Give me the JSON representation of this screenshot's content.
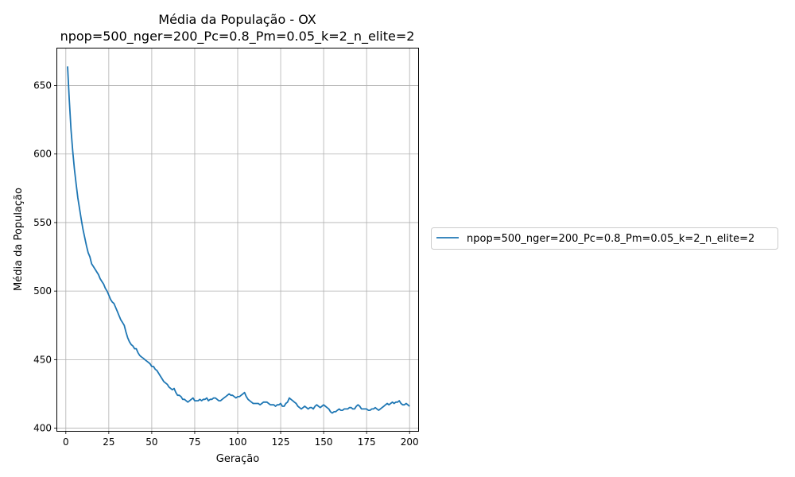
{
  "chart_data": {
    "type": "line",
    "title": "Média da População - OX",
    "subtitle": "npop=500_nger=200_Pc=0.8_Pm=0.05_k=2_n_elite=2",
    "xlabel": "Geração",
    "ylabel": "Média da População",
    "xlim": [
      -5,
      205
    ],
    "ylim": [
      398,
      677
    ],
    "xticks": [
      0,
      25,
      50,
      75,
      100,
      125,
      150,
      175,
      200
    ],
    "yticks": [
      400,
      450,
      500,
      550,
      600,
      650
    ],
    "grid": true,
    "legend_position": "right-outside",
    "series": [
      {
        "name": "npop=500_nger=200_Pc=0.8_Pm=0.05_k=2_n_elite=2",
        "color": "#1f77b4",
        "x": [
          1,
          2,
          3,
          4,
          5,
          6,
          7,
          8,
          9,
          10,
          11,
          12,
          13,
          14,
          15,
          16,
          17,
          18,
          19,
          20,
          21,
          22,
          23,
          24,
          25,
          26,
          27,
          28,
          29,
          30,
          31,
          32,
          33,
          34,
          35,
          36,
          37,
          38,
          39,
          40,
          41,
          42,
          43,
          44,
          45,
          46,
          47,
          48,
          49,
          50,
          51,
          52,
          53,
          54,
          55,
          56,
          57,
          58,
          59,
          60,
          61,
          62,
          63,
          64,
          65,
          66,
          67,
          68,
          69,
          70,
          71,
          72,
          73,
          74,
          75,
          76,
          77,
          78,
          79,
          80,
          81,
          82,
          83,
          84,
          85,
          86,
          87,
          88,
          89,
          90,
          91,
          92,
          93,
          94,
          95,
          96,
          97,
          98,
          99,
          100,
          101,
          102,
          103,
          104,
          105,
          106,
          107,
          108,
          109,
          110,
          111,
          112,
          113,
          114,
          115,
          116,
          117,
          118,
          119,
          120,
          121,
          122,
          123,
          124,
          125,
          126,
          127,
          128,
          129,
          130,
          131,
          132,
          133,
          134,
          135,
          136,
          137,
          138,
          139,
          140,
          141,
          142,
          143,
          144,
          145,
          146,
          147,
          148,
          149,
          150,
          151,
          152,
          153,
          154,
          155,
          156,
          157,
          158,
          159,
          160,
          161,
          162,
          163,
          164,
          165,
          166,
          167,
          168,
          169,
          170,
          171,
          172,
          173,
          174,
          175,
          176,
          177,
          178,
          179,
          180,
          181,
          182,
          183,
          184,
          185,
          186,
          187,
          188,
          189,
          190,
          191,
          192,
          193,
          194,
          195,
          196,
          197,
          198,
          199,
          200
        ],
        "y": [
          664,
          640,
          618,
          602,
          589,
          578,
          568,
          560,
          552,
          545,
          539,
          533,
          528,
          525,
          520,
          518,
          516,
          514,
          512,
          509,
          507,
          505,
          502,
          500,
          497,
          494,
          492,
          491,
          488,
          485,
          482,
          479,
          477,
          475,
          470,
          466,
          463,
          461,
          460,
          458,
          458,
          455,
          453,
          452,
          451,
          450,
          449,
          448,
          447,
          445,
          445,
          443,
          442,
          440,
          438,
          436,
          434,
          433,
          432,
          430,
          429,
          428,
          429,
          426,
          424,
          424,
          423,
          421,
          421,
          420,
          419,
          420,
          421,
          422,
          420,
          420,
          420,
          421,
          420,
          421,
          421,
          422,
          420,
          421,
          421,
          422,
          422,
          421,
          420,
          420,
          421,
          422,
          423,
          424,
          425,
          424,
          424,
          423,
          422,
          423,
          423,
          424,
          425,
          426,
          423,
          421,
          420,
          419,
          418,
          418,
          418,
          418,
          417,
          418,
          419,
          419,
          419,
          418,
          417,
          417,
          417,
          416,
          417,
          417,
          418,
          416,
          416,
          418,
          419,
          422,
          421,
          420,
          419,
          418,
          416,
          415,
          414,
          415,
          416,
          415,
          414,
          415,
          415,
          414,
          416,
          417,
          416,
          415,
          416,
          417,
          416,
          415,
          414,
          412,
          411,
          412,
          412,
          413,
          414,
          413,
          413,
          414,
          414,
          414,
          415,
          415,
          414,
          414,
          416,
          417,
          416,
          414,
          414,
          414,
          414,
          413,
          413,
          414,
          414,
          415,
          414,
          413,
          414,
          415,
          416,
          417,
          418,
          417,
          418,
          419,
          418,
          419,
          419,
          420,
          418,
          417,
          417,
          418,
          417,
          416
        ]
      }
    ]
  }
}
